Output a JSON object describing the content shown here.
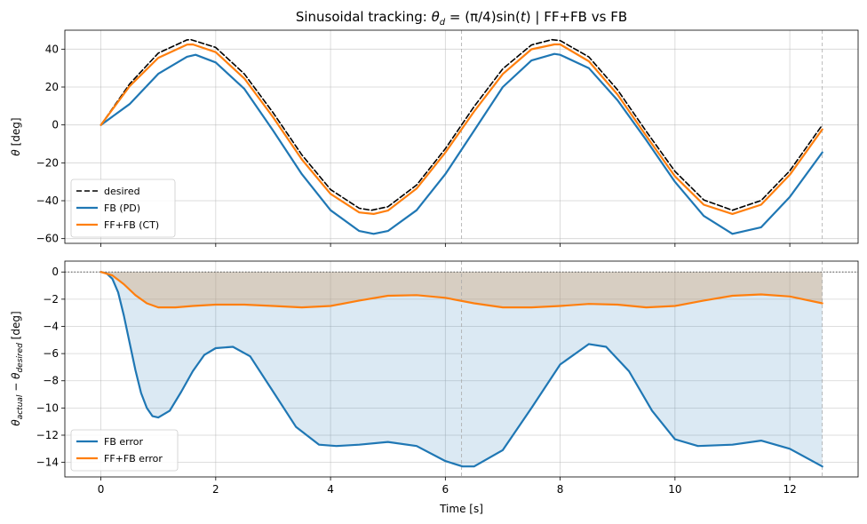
{
  "chart_data": [
    {
      "type": "line",
      "title": "Sinusoidal tracking: θ_d = (π/4)sin(t)  |  FF+FB vs FB",
      "title_parts": [
        "Sinusoidal tracking: ",
        "θ",
        "d",
        " = (π/4)sin(",
        "t",
        ")  |  FF+FB vs FB"
      ],
      "xlabel": "",
      "ylabel": "θ  [deg]",
      "ylabel_parts": [
        "θ",
        "  [deg]"
      ],
      "xlim": [
        -0.628,
        13.19
      ],
      "ylim": [
        -62.5,
        50.0
      ],
      "xticks": [
        0,
        2,
        4,
        6,
        8,
        10,
        12
      ],
      "yticks": [
        40,
        20,
        0,
        -20,
        -40,
        -60
      ],
      "ytick_labels": [
        "40",
        "20",
        "0",
        "−20",
        "−40",
        "−60"
      ],
      "grid": true,
      "vlines": [
        6.283,
        12.566
      ],
      "legend_position": "lower-left",
      "series": [
        {
          "name": "desired",
          "color": "#000000",
          "style": "dashed",
          "x": [
            0,
            0.5,
            1,
            1.5,
            1.571,
            2,
            2.5,
            3,
            3.5,
            4,
            4.5,
            4.712,
            5,
            5.5,
            6,
            6.283,
            6.5,
            7,
            7.5,
            7.854,
            8,
            8.5,
            9,
            9.5,
            10,
            10.5,
            11,
            11.5,
            12,
            12.566
          ],
          "y": [
            0,
            21.6,
            37.9,
            44.9,
            45,
            40.9,
            26.9,
            6.4,
            -15.8,
            -34.1,
            -44,
            -45,
            -43.2,
            -31.7,
            -12.6,
            0,
            9.7,
            29.6,
            42.2,
            45,
            44.5,
            35.9,
            18.5,
            -3.4,
            -24.5,
            -39.6,
            -45,
            -39.9,
            -24.2,
            0
          ]
        },
        {
          "name": "FB (PD)",
          "color": "#1f77b4",
          "style": "solid",
          "x": [
            0,
            0.5,
            1,
            1.5,
            1.65,
            2,
            2.5,
            3,
            3.5,
            4,
            4.5,
            4.75,
            5,
            5.5,
            6,
            6.5,
            7,
            7.5,
            7.9,
            8,
            8.5,
            9,
            9.5,
            10,
            10.5,
            11,
            11.5,
            12,
            12.566
          ],
          "y": [
            0,
            11,
            27,
            36,
            37,
            33,
            19,
            -3,
            -26,
            -45,
            -56,
            -57.5,
            -56,
            -45,
            -26,
            -3,
            20,
            34,
            37.5,
            37,
            30,
            13,
            -8,
            -30,
            -48,
            -57.5,
            -54,
            -38,
            -14.5
          ]
        },
        {
          "name": "FF+FB (CT)",
          "color": "#ff7f0e",
          "style": "solid",
          "x": [
            0,
            0.5,
            1,
            1.5,
            1.6,
            2,
            2.5,
            3,
            3.5,
            4,
            4.5,
            4.75,
            5,
            5.5,
            6,
            6.5,
            7,
            7.5,
            7.9,
            8,
            8.5,
            9,
            9.5,
            10,
            10.5,
            11,
            11.5,
            12,
            12.566
          ],
          "y": [
            0,
            20.4,
            35.4,
            42.4,
            42.5,
            38.4,
            24.5,
            4,
            -18.2,
            -36.4,
            -46.2,
            -47,
            -45.2,
            -33.6,
            -14.6,
            7.1,
            26.9,
            39.9,
            42.5,
            42.5,
            33.6,
            16,
            -5.8,
            -27.1,
            -42.1,
            -47,
            -42.1,
            -26.3,
            -2.3
          ]
        }
      ]
    },
    {
      "type": "line",
      "title": "",
      "xlabel": "Time [s]",
      "ylabel": "θ_actual − θ_desired  [deg]",
      "ylabel_parts": [
        "θ",
        "actual",
        " − ",
        "θ",
        "desired",
        "  [deg]"
      ],
      "xlim": [
        -0.628,
        13.19
      ],
      "ylim": [
        -15.07,
        0.8
      ],
      "xticks": [
        0,
        2,
        4,
        6,
        8,
        10,
        12
      ],
      "yticks": [
        0,
        -2,
        -4,
        -6,
        -8,
        -10,
        -12,
        -14
      ],
      "ytick_labels": [
        "0",
        "−2",
        "−4",
        "−6",
        "−8",
        "−10",
        "−12",
        "−14"
      ],
      "grid": true,
      "hline": 0,
      "vlines": [
        6.283,
        12.566
      ],
      "legend_position": "lower-left",
      "series": [
        {
          "name": "FB error",
          "color": "#1f77b4",
          "fill": "#1f77b4",
          "fill_opacity": 0.16,
          "x": [
            0,
            0.1,
            0.2,
            0.3,
            0.4,
            0.5,
            0.6,
            0.7,
            0.8,
            0.9,
            1,
            1.2,
            1.4,
            1.6,
            1.8,
            2,
            2.3,
            2.6,
            3,
            3.4,
            3.8,
            4.1,
            4.5,
            5,
            5.5,
            6,
            6.3,
            6.5,
            7,
            7.5,
            8,
            8.5,
            8.8,
            9.2,
            9.6,
            10,
            10.4,
            11,
            11.5,
            12,
            12.566
          ],
          "y": [
            0,
            -0.1,
            -0.5,
            -1.5,
            -3.2,
            -5.2,
            -7.2,
            -8.9,
            -10,
            -10.6,
            -10.7,
            -10.2,
            -8.8,
            -7.3,
            -6.1,
            -5.6,
            -5.5,
            -6.2,
            -8.8,
            -11.4,
            -12.7,
            -12.8,
            -12.7,
            -12.5,
            -12.8,
            -13.9,
            -14.3,
            -14.3,
            -13.1,
            -10,
            -6.8,
            -5.3,
            -5.5,
            -7.3,
            -10.2,
            -12.3,
            -12.8,
            -12.7,
            -12.4,
            -13,
            -14.3
          ]
        },
        {
          "name": "FF+FB error",
          "color": "#ff7f0e",
          "fill": "#d2a679",
          "fill_opacity": 0.4,
          "x": [
            0,
            0.2,
            0.4,
            0.6,
            0.8,
            1,
            1.3,
            1.6,
            2,
            2.5,
            3,
            3.5,
            4,
            4.5,
            5,
            5.5,
            6,
            6.5,
            7,
            7.5,
            8,
            8.5,
            9,
            9.5,
            10,
            10.5,
            11,
            11.5,
            12,
            12.566
          ],
          "y": [
            0,
            -0.25,
            -0.9,
            -1.7,
            -2.3,
            -2.6,
            -2.6,
            -2.5,
            -2.4,
            -2.4,
            -2.5,
            -2.6,
            -2.5,
            -2.1,
            -1.75,
            -1.7,
            -1.9,
            -2.3,
            -2.6,
            -2.6,
            -2.5,
            -2.35,
            -2.4,
            -2.6,
            -2.5,
            -2.1,
            -1.75,
            -1.65,
            -1.8,
            -2.3
          ]
        }
      ]
    }
  ]
}
